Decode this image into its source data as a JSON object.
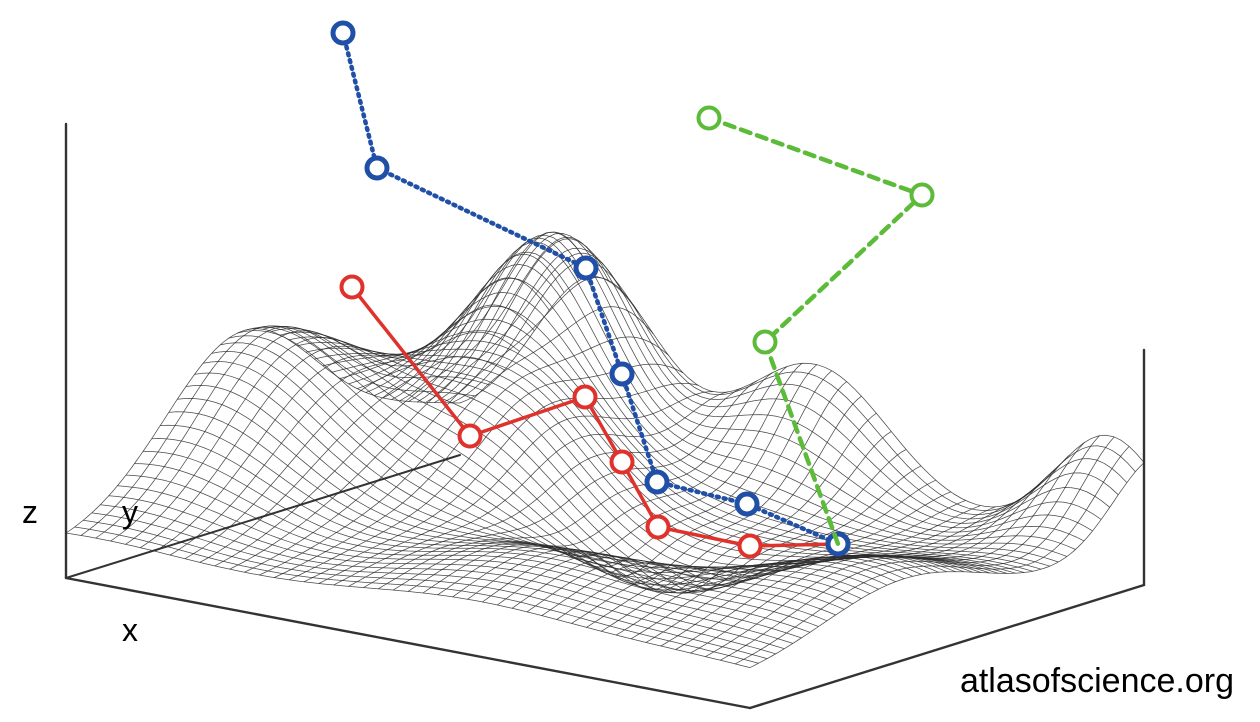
{
  "axes": {
    "z_label": "z",
    "y_label": "y",
    "x_label": "x"
  },
  "watermark": "atlasofscience.org",
  "colors": {
    "mesh": "#2b2b2b",
    "box": "#333333",
    "path_red": "#e0322c",
    "path_blue": "#1f4fa6",
    "path_green": "#5dbb3a"
  },
  "paths": [
    {
      "id": "red",
      "style": "solid",
      "marker_count": 7
    },
    {
      "id": "blue",
      "style": "dotted",
      "marker_count": 7
    },
    {
      "id": "green",
      "style": "dashed",
      "marker_count": 3
    }
  ]
}
